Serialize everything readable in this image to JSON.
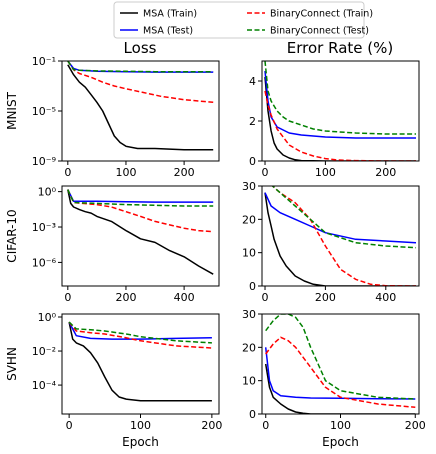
{
  "legend": {
    "placement": "top-center",
    "entries": [
      {
        "label": "MSA (Train)",
        "color": "#000000",
        "dash": "solid"
      },
      {
        "label": "MSA (Test)",
        "color": "#0000ff",
        "dash": "solid"
      },
      {
        "label": "BinaryConnect (Train)",
        "color": "#ff0000",
        "dash": "dashed"
      },
      {
        "label": "BinaryConnect (Test)",
        "color": "#008000",
        "dash": "dashed"
      }
    ]
  },
  "column_titles": [
    "Loss",
    "Error Rate (%)"
  ],
  "row_labels": [
    "MNIST",
    "CIFAR-10",
    "SVHN"
  ],
  "xlabel": "Epoch",
  "chart_data": [
    {
      "type": "line",
      "row": "MNIST",
      "metric": "Loss",
      "yscale": "log",
      "xlim": [
        -10,
        260
      ],
      "ylim": [
        1e-09,
        0.1
      ],
      "xticks": [
        {
          "v": 0,
          "label": "0"
        },
        {
          "v": 100,
          "label": "100"
        },
        {
          "v": 200,
          "label": "200"
        }
      ],
      "yticks": [
        {
          "v": 1e-09,
          "label": "10⁻⁹"
        },
        {
          "v": 1e-05,
          "label": "10⁻⁵"
        },
        {
          "v": 0.1,
          "label": "10⁻¹"
        }
      ],
      "series": [
        {
          "name": "MSA (Train)",
          "x": [
            0,
            10,
            20,
            30,
            40,
            50,
            60,
            70,
            80,
            90,
            100,
            120,
            150,
            200,
            250
          ],
          "y": [
            0.05,
            0.008,
            0.002,
            0.0008,
            0.0002,
            5e-05,
            1e-05,
            1e-06,
            1e-07,
            3e-08,
            1.5e-08,
            1e-08,
            1e-08,
            8e-09,
            8e-09
          ]
        },
        {
          "name": "MSA (Test)",
          "x": [
            0,
            10,
            20,
            50,
            100,
            150,
            200,
            250
          ],
          "y": [
            0.1,
            0.025,
            0.018,
            0.015,
            0.014,
            0.013,
            0.013,
            0.013
          ]
        },
        {
          "name": "BinaryConnect (Train)",
          "x": [
            0,
            10,
            20,
            40,
            60,
            80,
            100,
            130,
            160,
            200,
            250
          ],
          "y": [
            0.1,
            0.02,
            0.01,
            0.005,
            0.002,
            0.001,
            0.0006,
            0.0003,
            0.00015,
            8e-05,
            5e-05
          ]
        },
        {
          "name": "BinaryConnect (Test)",
          "x": [
            0,
            10,
            20,
            50,
            100,
            150,
            200,
            250
          ],
          "y": [
            0.1,
            0.02,
            0.018,
            0.016,
            0.015,
            0.014,
            0.014,
            0.014
          ]
        }
      ]
    },
    {
      "type": "line",
      "row": "MNIST",
      "metric": "Error Rate (%)",
      "yscale": "linear",
      "xlim": [
        -5,
        255
      ],
      "ylim": [
        0,
        5
      ],
      "xticks": [
        {
          "v": 0,
          "label": "0"
        },
        {
          "v": 100,
          "label": "100"
        },
        {
          "v": 200,
          "label": "200"
        }
      ],
      "yticks": [
        {
          "v": 0,
          "label": "0"
        },
        {
          "v": 2,
          "label": "2"
        },
        {
          "v": 4,
          "label": "4"
        }
      ],
      "series": [
        {
          "name": "MSA (Train)",
          "x": [
            0,
            5,
            10,
            15,
            20,
            30,
            40,
            50,
            60,
            80,
            100,
            150,
            250
          ],
          "y": [
            4.2,
            2.5,
            1.5,
            0.9,
            0.6,
            0.3,
            0.15,
            0.06,
            0.02,
            0.01,
            0,
            0,
            0
          ]
        },
        {
          "name": "MSA (Test)",
          "x": [
            0,
            5,
            10,
            20,
            40,
            60,
            100,
            150,
            200,
            250
          ],
          "y": [
            4.5,
            3.0,
            2.2,
            1.7,
            1.4,
            1.3,
            1.2,
            1.15,
            1.15,
            1.15
          ]
        },
        {
          "name": "BinaryConnect (Train)",
          "x": [
            0,
            5,
            10,
            20,
            30,
            40,
            60,
            80,
            100,
            120,
            150,
            200,
            250
          ],
          "y": [
            3.5,
            2.8,
            2.3,
            1.6,
            1.2,
            0.8,
            0.45,
            0.25,
            0.12,
            0.05,
            0.02,
            0,
            0
          ]
        },
        {
          "name": "BinaryConnect (Test)",
          "x": [
            0,
            5,
            10,
            20,
            30,
            40,
            60,
            80,
            100,
            150,
            200,
            250
          ],
          "y": [
            5.0,
            3.5,
            3.0,
            2.5,
            2.2,
            2.0,
            1.8,
            1.6,
            1.5,
            1.4,
            1.35,
            1.35
          ]
        }
      ]
    },
    {
      "type": "line",
      "row": "CIFAR-10",
      "metric": "Loss",
      "yscale": "log",
      "xlim": [
        -20,
        520
      ],
      "ylim": [
        1e-08,
        3
      ],
      "xticks": [
        {
          "v": 0,
          "label": "0"
        },
        {
          "v": 200,
          "label": "200"
        },
        {
          "v": 400,
          "label": "400"
        }
      ],
      "yticks": [
        {
          "v": 1e-06,
          "label": "10⁻⁶"
        },
        {
          "v": 0.001,
          "label": "10⁻³"
        },
        {
          "v": 1,
          "label": "10⁰"
        }
      ],
      "series": [
        {
          "name": "MSA (Train)",
          "x": [
            0,
            10,
            20,
            40,
            60,
            80,
            100,
            150,
            200,
            250,
            300,
            350,
            400,
            450,
            500
          ],
          "y": [
            1.5,
            0.1,
            0.05,
            0.03,
            0.02,
            0.015,
            0.008,
            0.003,
            0.0005,
            0.0001,
            5e-05,
            1e-05,
            3e-06,
            5e-07,
            1e-07
          ]
        },
        {
          "name": "MSA (Test)",
          "x": [
            0,
            20,
            100,
            200,
            300,
            400,
            500
          ],
          "y": [
            1.5,
            0.15,
            0.15,
            0.14,
            0.13,
            0.13,
            0.13
          ]
        },
        {
          "name": "BinaryConnect (Train)",
          "x": [
            0,
            20,
            50,
            100,
            150,
            200,
            250,
            300,
            350,
            400,
            450,
            500
          ],
          "y": [
            1.5,
            0.12,
            0.1,
            0.08,
            0.05,
            0.02,
            0.008,
            0.003,
            0.0015,
            0.0008,
            0.0005,
            0.0004
          ]
        },
        {
          "name": "BinaryConnect (Test)",
          "x": [
            0,
            20,
            100,
            200,
            300,
            400,
            500
          ],
          "y": [
            1.5,
            0.12,
            0.1,
            0.08,
            0.07,
            0.06,
            0.06
          ]
        }
      ]
    },
    {
      "type": "line",
      "row": "CIFAR-10",
      "metric": "Error Rate (%)",
      "yscale": "linear",
      "xlim": [
        -10,
        510
      ],
      "ylim": [
        0,
        30
      ],
      "xticks": [
        {
          "v": 0,
          "label": "0"
        },
        {
          "v": 200,
          "label": "200"
        },
        {
          "v": 400,
          "label": "400"
        }
      ],
      "yticks": [
        {
          "v": 0,
          "label": "0"
        },
        {
          "v": 10,
          "label": "10"
        },
        {
          "v": 20,
          "label": "20"
        },
        {
          "v": 30,
          "label": "30"
        }
      ],
      "series": [
        {
          "name": "MSA (Train)",
          "x": [
            0,
            10,
            20,
            30,
            50,
            70,
            100,
            130,
            160,
            200,
            500
          ],
          "y": [
            28,
            22,
            18,
            14,
            9,
            6,
            3,
            1.5,
            0.5,
            0,
            0
          ]
        },
        {
          "name": "MSA (Test)",
          "x": [
            0,
            20,
            50,
            100,
            150,
            200,
            300,
            400,
            500
          ],
          "y": [
            28,
            24,
            22,
            20,
            18,
            16,
            14,
            13.5,
            13
          ]
        },
        {
          "name": "BinaryConnect (Train)",
          "x": [
            0,
            50,
            100,
            150,
            200,
            250,
            300,
            350,
            400,
            500
          ],
          "y": [
            32,
            28,
            25,
            20,
            12,
            5,
            2,
            0.5,
            0.1,
            0
          ]
        },
        {
          "name": "BinaryConnect (Test)",
          "x": [
            0,
            50,
            100,
            150,
            200,
            300,
            400,
            500
          ],
          "y": [
            32,
            28,
            24,
            20,
            16,
            13,
            12,
            11.5
          ]
        }
      ]
    },
    {
      "type": "line",
      "row": "SVHN",
      "metric": "Loss",
      "yscale": "log",
      "xlim": [
        -10,
        210
      ],
      "ylim": [
        2e-06,
        1.5
      ],
      "xticks": [
        {
          "v": 0,
          "label": "0"
        },
        {
          "v": 100,
          "label": "100"
        },
        {
          "v": 200,
          "label": "200"
        }
      ],
      "yticks": [
        {
          "v": 0.0001,
          "label": "10⁻⁴"
        },
        {
          "v": 0.01,
          "label": "10⁻²"
        },
        {
          "v": 1,
          "label": "10⁰"
        }
      ],
      "series": [
        {
          "name": "MSA (Train)",
          "x": [
            0,
            5,
            10,
            20,
            30,
            40,
            50,
            60,
            70,
            80,
            100,
            150,
            200
          ],
          "y": [
            0.5,
            0.05,
            0.03,
            0.02,
            0.008,
            0.002,
            0.0003,
            5e-05,
            2e-05,
            1.5e-05,
            1.2e-05,
            1.2e-05,
            1.2e-05
          ]
        },
        {
          "name": "MSA (Test)",
          "x": [
            0,
            10,
            30,
            60,
            100,
            150,
            200
          ],
          "y": [
            0.5,
            0.08,
            0.055,
            0.05,
            0.05,
            0.055,
            0.06
          ]
        },
        {
          "name": "BinaryConnect (Train)",
          "x": [
            0,
            10,
            30,
            50,
            80,
            100,
            150,
            200
          ],
          "y": [
            0.5,
            0.15,
            0.12,
            0.1,
            0.06,
            0.04,
            0.02,
            0.015
          ]
        },
        {
          "name": "BinaryConnect (Test)",
          "x": [
            0,
            10,
            30,
            50,
            80,
            100,
            150,
            200
          ],
          "y": [
            0.5,
            0.2,
            0.18,
            0.15,
            0.1,
            0.07,
            0.04,
            0.03
          ]
        }
      ]
    },
    {
      "type": "line",
      "row": "SVHN",
      "metric": "Error Rate (%)",
      "yscale": "linear",
      "xlim": [
        -5,
        205
      ],
      "ylim": [
        0,
        30
      ],
      "xticks": [
        {
          "v": 0,
          "label": "0"
        },
        {
          "v": 100,
          "label": "100"
        },
        {
          "v": 200,
          "label": "200"
        }
      ],
      "yticks": [
        {
          "v": 0,
          "label": "0"
        },
        {
          "v": 10,
          "label": "10"
        },
        {
          "v": 20,
          "label": "20"
        },
        {
          "v": 30,
          "label": "30"
        }
      ],
      "series": [
        {
          "name": "MSA (Train)",
          "x": [
            0,
            5,
            10,
            20,
            30,
            40,
            50,
            60,
            200
          ],
          "y": [
            15,
            8,
            5,
            3,
            1.5,
            0.6,
            0.2,
            0,
            0
          ]
        },
        {
          "name": "MSA (Test)",
          "x": [
            0,
            5,
            10,
            20,
            40,
            60,
            100,
            150,
            200
          ],
          "y": [
            20,
            10,
            7,
            5.5,
            5,
            4.8,
            4.7,
            4.6,
            4.5
          ]
        },
        {
          "name": "BinaryConnect (Train)",
          "x": [
            0,
            10,
            20,
            30,
            40,
            50,
            60,
            80,
            100,
            150,
            200
          ],
          "y": [
            18,
            21,
            23,
            22,
            20,
            17,
            14,
            8,
            5,
            3,
            2
          ]
        },
        {
          "name": "BinaryConnect (Test)",
          "x": [
            0,
            10,
            20,
            30,
            40,
            50,
            60,
            70,
            80,
            100,
            150,
            200
          ],
          "y": [
            25,
            28,
            30,
            30,
            29,
            26,
            20,
            15,
            10,
            7,
            5,
            4.5
          ]
        }
      ]
    }
  ]
}
